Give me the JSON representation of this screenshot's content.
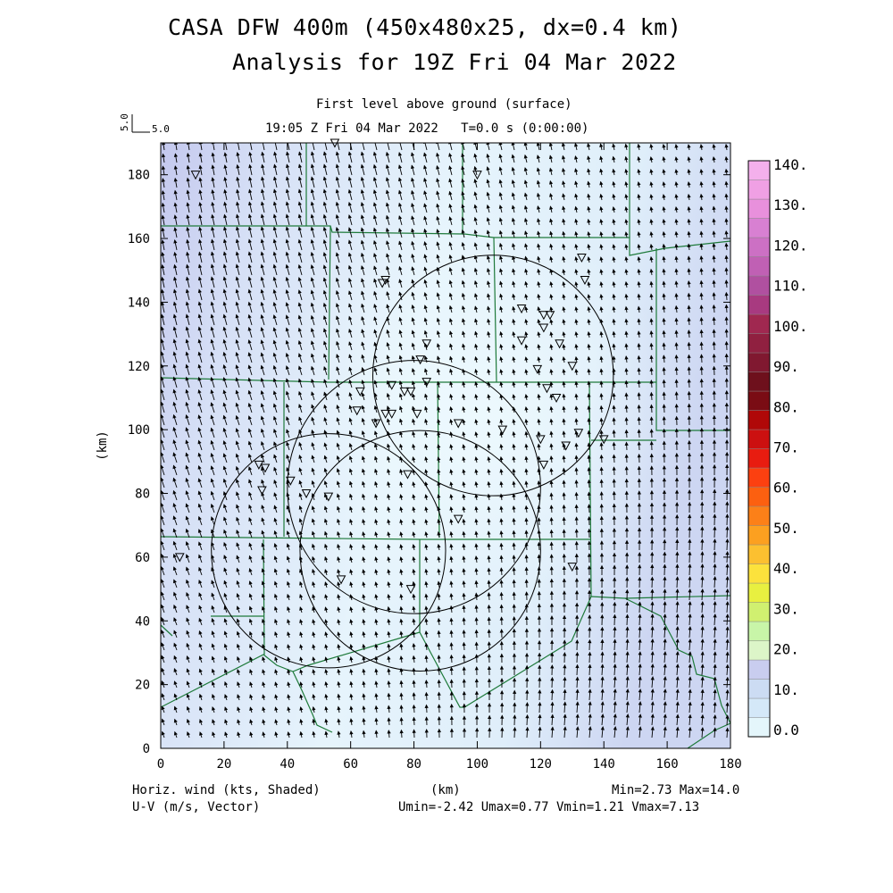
{
  "title_line1": "CASA DFW 400m (450x480x25, dx=0.4 km)",
  "title_line2": "Analysis for 19Z Fri 04 Mar 2022",
  "level_label": "First level above ground (surface)",
  "time_label": "19:05 Z Fri 04 Mar 2022   T=0.0 s (0:00:00)",
  "ref_vector": {
    "rotated_label": "5.0",
    "label": "5.0"
  },
  "footer": {
    "left_line1": "Horiz. wind (kts, Shaded)",
    "left_line2": "U-V (m/s, Vector)",
    "center": "(km)",
    "right_line1": "Min=2.73 Max=14.0",
    "right_line2": "Umin=-2.42 Umax=0.77 Vmin=1.21 Vmax=7.13"
  },
  "colors": {
    "shade_low": "#eef8fd",
    "shade_mid": "#d8e6f7",
    "shade_high": "#c9cdef",
    "boundaries": "#1e7a3a",
    "vectors": "#000000"
  },
  "chart_data": {
    "type": "heatmap",
    "field": "horizontal wind speed (kts) with U-V vectors",
    "xlabel": "(km)",
    "ylabel": "(km)",
    "xlim": [
      0,
      180
    ],
    "ylim": [
      0,
      190
    ],
    "xticks": [
      0,
      20,
      40,
      60,
      80,
      100,
      120,
      140,
      160,
      180
    ],
    "yticks": [
      0,
      20,
      40,
      60,
      80,
      100,
      120,
      140,
      160,
      180
    ],
    "min": 2.73,
    "max": 14.0,
    "umin": -2.42,
    "umax": 0.77,
    "vmin": 1.21,
    "vmax": 7.13,
    "colorbar": {
      "levels": [
        0.0,
        10.0,
        20.0,
        30.0,
        40.0,
        50.0,
        60.0,
        70.0,
        80.0,
        90.0,
        100.0,
        110.0,
        120.0,
        130.0,
        140.0
      ],
      "labels": [
        "0.0",
        "10.",
        "20.",
        "30.",
        "40.",
        "50.",
        "60.",
        "70.",
        "80.",
        "90.",
        "100.",
        "110.",
        "120.",
        "130.",
        "140."
      ],
      "colors": [
        "#e4f6fb",
        "#d4e8f8",
        "#ccdcf3",
        "#c9cdef",
        "#dcf5c8",
        "#c8f5a8",
        "#d0f070",
        "#e8f040",
        "#fce23c",
        "#fcc030",
        "#fca020",
        "#fc8018",
        "#fc6010",
        "#fc4010",
        "#e81c10",
        "#cc1010",
        "#b00808",
        "#7a0c14",
        "#6e101c",
        "#801830",
        "#902040",
        "#a02850",
        "#a83a80",
        "#b050a0",
        "#c060b4",
        "#cc70c4",
        "#d880d2",
        "#e890dc",
        "#f0a0e4",
        "#f4b0ec"
      ]
    },
    "radar_rings": [
      {
        "center_km": [
          53,
          62
        ],
        "radius_km": 37
      },
      {
        "center_km": [
          80,
          82
        ],
        "radius_km": 40
      },
      {
        "center_km": [
          82,
          62
        ],
        "radius_km": 38
      },
      {
        "center_km": [
          105,
          117
        ],
        "radius_km": 38
      }
    ],
    "stations_km": [
      [
        11,
        180
      ],
      [
        55,
        190
      ],
      [
        100,
        180
      ],
      [
        133,
        154
      ],
      [
        134,
        147
      ],
      [
        70,
        146
      ],
      [
        71,
        147
      ],
      [
        114,
        138
      ],
      [
        121,
        136
      ],
      [
        123,
        136
      ],
      [
        121,
        132
      ],
      [
        114,
        128
      ],
      [
        126,
        127
      ],
      [
        84,
        127
      ],
      [
        82,
        122
      ],
      [
        119,
        119
      ],
      [
        130,
        120
      ],
      [
        63,
        112
      ],
      [
        73,
        114
      ],
      [
        77,
        112
      ],
      [
        84,
        115
      ],
      [
        79,
        112
      ],
      [
        122,
        113
      ],
      [
        125,
        110
      ],
      [
        62,
        106
      ],
      [
        71,
        105
      ],
      [
        73,
        105
      ],
      [
        68,
        102
      ],
      [
        81,
        105
      ],
      [
        94,
        102
      ],
      [
        108,
        100
      ],
      [
        120,
        97
      ],
      [
        128,
        95
      ],
      [
        132,
        99
      ],
      [
        140,
        97
      ],
      [
        31,
        89
      ],
      [
        33,
        88
      ],
      [
        78,
        86
      ],
      [
        121,
        89
      ],
      [
        32,
        81
      ],
      [
        41,
        84
      ],
      [
        46,
        80
      ],
      [
        53,
        79
      ],
      [
        94,
        72
      ],
      [
        6,
        60
      ],
      [
        57,
        53
      ],
      [
        79,
        50
      ],
      [
        130,
        57
      ]
    ]
  }
}
